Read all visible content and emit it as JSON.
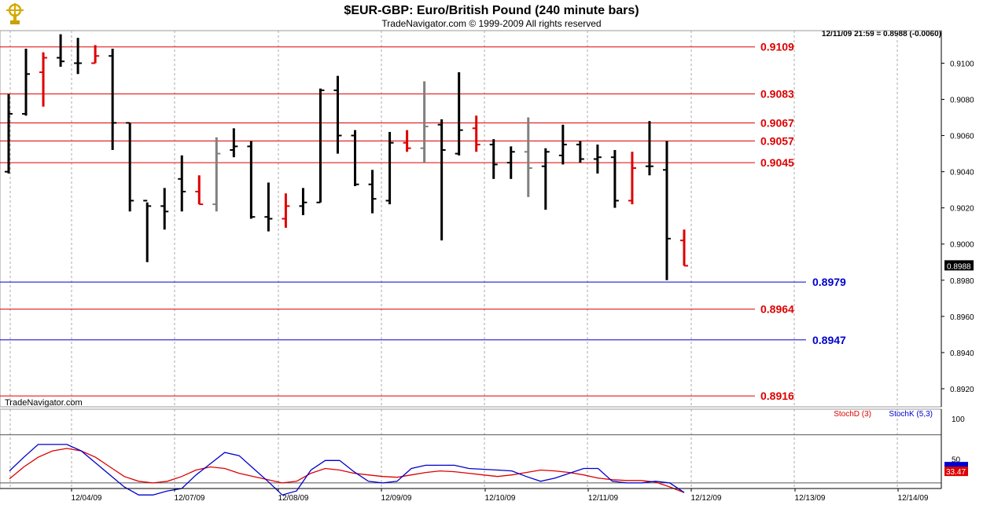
{
  "header": {
    "title": "$EUR-GBP:  Euro/British Pound  (240 minute bars)",
    "subtitle": "TradeNavigator.com © 1999-2009 All rights reserved",
    "last_quote": "12/11/09 21:59 = 0.8988 (-0.0060)"
  },
  "watermark": "TradeNavigator.com",
  "logo_icon": "ship-wheel-trophy-icon",
  "colors": {
    "up": "#000000",
    "down": "#dd0000",
    "neutral": "#808080",
    "red_level": "#dd0000",
    "blue_level": "#0000cc",
    "stochD": "#dd0000",
    "stochK": "#0000cc"
  },
  "chart_data": [
    {
      "type": "ohlc",
      "title": "$EUR-GBP:  Euro/British Pound  (240 minute bars)",
      "ylim": [
        0.891,
        0.9118
      ],
      "y_ticks": [
        "0.9100",
        "0.9080",
        "0.9060",
        "0.9040",
        "0.9020",
        "0.9000",
        "0.8980",
        "0.8960",
        "0.8940",
        "0.8920"
      ],
      "current_price": "0.8988",
      "levels": [
        {
          "label": "0.9109",
          "value": 0.9109,
          "color": "red"
        },
        {
          "label": "0.9083",
          "value": 0.9083,
          "color": "red"
        },
        {
          "label": "0.9067",
          "value": 0.9067,
          "color": "red"
        },
        {
          "label": "0.9057",
          "value": 0.9057,
          "color": "red"
        },
        {
          "label": "0.9045",
          "value": 0.9045,
          "color": "red"
        },
        {
          "label": "0.8979",
          "value": 0.8979,
          "color": "blue"
        },
        {
          "label": "0.8964",
          "value": 0.8964,
          "color": "red"
        },
        {
          "label": "0.8947",
          "value": 0.8947,
          "color": "blue"
        },
        {
          "label": "0.8916",
          "value": 0.8916,
          "color": "red"
        }
      ],
      "bars": [
        {
          "o": 0.904,
          "h": 0.9083,
          "l": 0.9039,
          "c": 0.9072,
          "dir": "up"
        },
        {
          "o": 0.9072,
          "h": 0.9108,
          "l": 0.9071,
          "c": 0.9094,
          "dir": "up"
        },
        {
          "o": 0.9095,
          "h": 0.9106,
          "l": 0.9076,
          "c": 0.9103,
          "dir": "down"
        },
        {
          "o": 0.9103,
          "h": 0.9116,
          "l": 0.9098,
          "c": 0.9101,
          "dir": "up"
        },
        {
          "o": 0.91,
          "h": 0.9114,
          "l": 0.9094,
          "c": 0.91,
          "dir": "up"
        },
        {
          "o": 0.91,
          "h": 0.911,
          "l": 0.91,
          "c": 0.9104,
          "dir": "down"
        },
        {
          "o": 0.9104,
          "h": 0.9108,
          "l": 0.9052,
          "c": 0.9067,
          "dir": "up"
        },
        {
          "o": 0.9067,
          "h": 0.9067,
          "l": 0.9018,
          "c": 0.9024,
          "dir": "up"
        },
        {
          "o": 0.9024,
          "h": 0.9023,
          "l": 0.899,
          "c": 0.9021,
          "dir": "up"
        },
        {
          "o": 0.9021,
          "h": 0.9031,
          "l": 0.9008,
          "c": 0.9018,
          "dir": "up"
        },
        {
          "o": 0.9036,
          "h": 0.9049,
          "l": 0.9018,
          "c": 0.9029,
          "dir": "up"
        },
        {
          "o": 0.9029,
          "h": 0.9038,
          "l": 0.9022,
          "c": 0.9022,
          "dir": "down"
        },
        {
          "o": 0.9022,
          "h": 0.9059,
          "l": 0.9018,
          "c": 0.905,
          "dir": "neutral"
        },
        {
          "o": 0.9052,
          "h": 0.9064,
          "l": 0.9048,
          "c": 0.9054,
          "dir": "up"
        },
        {
          "o": 0.9054,
          "h": 0.9057,
          "l": 0.9014,
          "c": 0.9015,
          "dir": "up"
        },
        {
          "o": 0.9015,
          "h": 0.9034,
          "l": 0.9007,
          "c": 0.9014,
          "dir": "up"
        },
        {
          "o": 0.9014,
          "h": 0.9028,
          "l": 0.9009,
          "c": 0.9021,
          "dir": "down"
        },
        {
          "o": 0.9021,
          "h": 0.9031,
          "l": 0.9016,
          "c": 0.9023,
          "dir": "up"
        },
        {
          "o": 0.9023,
          "h": 0.9086,
          "l": 0.9023,
          "c": 0.9085,
          "dir": "up"
        },
        {
          "o": 0.9085,
          "h": 0.9093,
          "l": 0.905,
          "c": 0.906,
          "dir": "up"
        },
        {
          "o": 0.906,
          "h": 0.9063,
          "l": 0.9032,
          "c": 0.9033,
          "dir": "up"
        },
        {
          "o": 0.9033,
          "h": 0.9041,
          "l": 0.9017,
          "c": 0.9025,
          "dir": "up"
        },
        {
          "o": 0.9024,
          "h": 0.9062,
          "l": 0.9022,
          "c": 0.9056,
          "dir": "up"
        },
        {
          "o": 0.9056,
          "h": 0.9063,
          "l": 0.9051,
          "c": 0.9053,
          "dir": "down"
        },
        {
          "o": 0.9053,
          "h": 0.909,
          "l": 0.9045,
          "c": 0.9065,
          "dir": "neutral"
        },
        {
          "o": 0.9066,
          "h": 0.9069,
          "l": 0.9002,
          "c": 0.9052,
          "dir": "up"
        },
        {
          "o": 0.905,
          "h": 0.9095,
          "l": 0.9049,
          "c": 0.9063,
          "dir": "up"
        },
        {
          "o": 0.9064,
          "h": 0.9071,
          "l": 0.9051,
          "c": 0.9055,
          "dir": "down"
        },
        {
          "o": 0.9055,
          "h": 0.9058,
          "l": 0.9036,
          "c": 0.9044,
          "dir": "up"
        },
        {
          "o": 0.9045,
          "h": 0.9054,
          "l": 0.9036,
          "c": 0.9051,
          "dir": "up"
        },
        {
          "o": 0.9051,
          "h": 0.907,
          "l": 0.9026,
          "c": 0.9042,
          "dir": "neutral"
        },
        {
          "o": 0.9043,
          "h": 0.9053,
          "l": 0.9019,
          "c": 0.9051,
          "dir": "up"
        },
        {
          "o": 0.9049,
          "h": 0.9066,
          "l": 0.9044,
          "c": 0.9055,
          "dir": "up"
        },
        {
          "o": 0.9055,
          "h": 0.9057,
          "l": 0.9045,
          "c": 0.9047,
          "dir": "up"
        },
        {
          "o": 0.9047,
          "h": 0.9055,
          "l": 0.9039,
          "c": 0.9048,
          "dir": "up"
        },
        {
          "o": 0.9048,
          "h": 0.9052,
          "l": 0.902,
          "c": 0.9024,
          "dir": "up"
        },
        {
          "o": 0.9024,
          "h": 0.9051,
          "l": 0.9022,
          "c": 0.9042,
          "dir": "down"
        },
        {
          "o": 0.9043,
          "h": 0.9068,
          "l": 0.9038,
          "c": 0.9043,
          "dir": "up"
        },
        {
          "o": 0.9041,
          "h": 0.9057,
          "l": 0.898,
          "c": 0.9003,
          "dir": "up"
        },
        {
          "o": 0.9002,
          "h": 0.9008,
          "l": 0.8988,
          "c": 0.8988,
          "dir": "down"
        }
      ]
    },
    {
      "type": "line",
      "series": [
        {
          "name": "StochD (3)",
          "color": "red",
          "values": [
            25,
            40,
            52,
            60,
            63,
            60,
            52,
            40,
            28,
            22,
            20,
            22,
            28,
            36,
            40,
            38,
            32,
            28,
            24,
            20,
            22,
            32,
            38,
            36,
            32,
            30,
            28,
            27,
            30,
            33,
            35,
            34,
            32,
            30,
            28,
            30,
            33,
            36,
            35,
            33,
            30,
            26,
            24,
            23,
            23,
            21,
            15,
            8
          ]
        },
        {
          "name": "StochK (5,3)",
          "color": "blue",
          "values": [
            35,
            52,
            68,
            68,
            68,
            60,
            45,
            30,
            15,
            5,
            5,
            10,
            13,
            30,
            44,
            58,
            54,
            38,
            22,
            5,
            10,
            36,
            48,
            48,
            34,
            22,
            20,
            22,
            38,
            42,
            42,
            42,
            38,
            37,
            36,
            35,
            28,
            22,
            26,
            32,
            38,
            38,
            22,
            20,
            20,
            22,
            20,
            8
          ]
        }
      ],
      "y_ticks": [
        "100",
        "50"
      ],
      "current_value": "33.47"
    }
  ],
  "x_axis": {
    "labels": [
      "12/04/09",
      "12/07/09",
      "12/08/09",
      "12/09/09",
      "12/10/09",
      "12/11/09",
      "12/12/09",
      "12/13/09",
      "12/14/09"
    ]
  }
}
